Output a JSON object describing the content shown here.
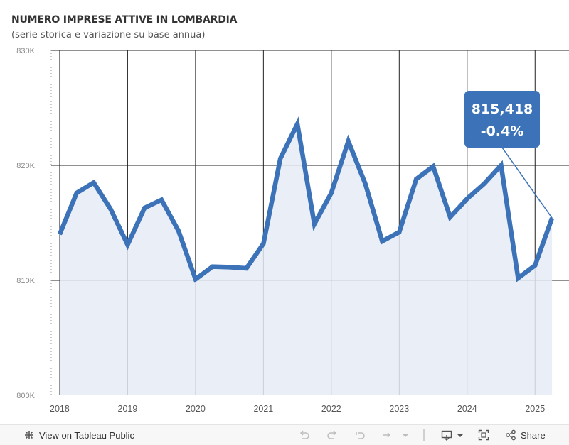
{
  "chart_data": {
    "type": "area",
    "title": "NUMERO IMPRESE ATTIVE IN LOMBARDIA",
    "subtitle": "(serie storica e variazione su base annua)",
    "x_tick_labels": [
      "2018",
      "2019",
      "2020",
      "2021",
      "2022",
      "2023",
      "2024",
      "2025"
    ],
    "y_tick_labels": [
      "800K",
      "810K",
      "820K",
      "830K"
    ],
    "ylim": [
      800000,
      830000
    ],
    "xlim": [
      2017.875,
      2025.5
    ],
    "grid": true,
    "x": [
      2018.0,
      2018.25,
      2018.5,
      2018.75,
      2019.0,
      2019.25,
      2019.5,
      2019.75,
      2020.0,
      2020.25,
      2020.5,
      2020.75,
      2021.0,
      2021.25,
      2021.5,
      2021.75,
      2022.0,
      2022.25,
      2022.5,
      2022.75,
      2023.0,
      2023.25,
      2023.5,
      2023.75,
      2024.0,
      2024.25,
      2024.5,
      2024.75,
      2025.0,
      2025.25
    ],
    "values": [
      814000,
      817600,
      818500,
      816200,
      813100,
      816300,
      817000,
      814300,
      810100,
      811200,
      811150,
      811050,
      813200,
      820600,
      823600,
      814900,
      817600,
      822100,
      818400,
      813400,
      814200,
      818800,
      819900,
      815500,
      817100,
      818400,
      820000,
      810200,
      811300,
      815418
    ],
    "callout": {
      "value": "815,418",
      "change": "-0.4%"
    }
  },
  "colors": {
    "line": "#3c72b8",
    "area": "#e6ecf6",
    "callout_bg": "#3c72b8",
    "grid": "#222222"
  },
  "toolbar": {
    "view_label": "View on Tableau Public",
    "share_label": "Share"
  }
}
